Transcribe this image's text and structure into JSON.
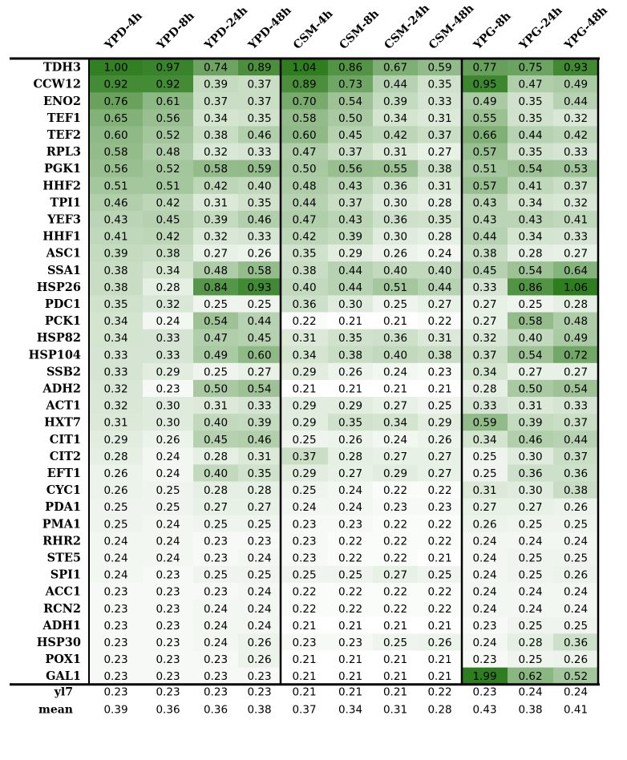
{
  "chart_data": {
    "type": "heatmap",
    "columns": [
      "YPD-4h",
      "YPD-8h",
      "YPD-24h",
      "YPD-48h",
      "CSM-4h",
      "CSM-8h",
      "CSM-24h",
      "CSM-48h",
      "YPG-8h",
      "YPG-24h",
      "YPG-48h"
    ],
    "column_groups": [
      {
        "columns": [
          "YPD-4h",
          "YPD-8h",
          "YPD-24h",
          "YPD-48h"
        ]
      },
      {
        "columns": [
          "CSM-4h",
          "CSM-8h",
          "CSM-24h",
          "CSM-48h"
        ]
      },
      {
        "columns": [
          "YPG-8h",
          "YPG-24h",
          "YPG-48h"
        ]
      }
    ],
    "rows": [
      {
        "name": "TDH3",
        "values": [
          "1.00",
          "0.97",
          "0.74",
          "0.89",
          "1.04",
          "0.86",
          "0.67",
          "0.59",
          "0.77",
          "0.75",
          "0.93"
        ]
      },
      {
        "name": "CCW12",
        "values": [
          "0.92",
          "0.92",
          "0.39",
          "0.37",
          "0.89",
          "0.73",
          "0.44",
          "0.35",
          "0.95",
          "0.47",
          "0.49"
        ]
      },
      {
        "name": "ENO2",
        "values": [
          "0.76",
          "0.61",
          "0.37",
          "0.37",
          "0.70",
          "0.54",
          "0.39",
          "0.33",
          "0.49",
          "0.35",
          "0.44"
        ]
      },
      {
        "name": "TEF1",
        "values": [
          "0.65",
          "0.56",
          "0.34",
          "0.35",
          "0.58",
          "0.50",
          "0.34",
          "0.31",
          "0.55",
          "0.35",
          "0.32"
        ]
      },
      {
        "name": "TEF2",
        "values": [
          "0.60",
          "0.52",
          "0.38",
          "0.46",
          "0.60",
          "0.45",
          "0.42",
          "0.37",
          "0.66",
          "0.44",
          "0.42"
        ]
      },
      {
        "name": "RPL3",
        "values": [
          "0.58",
          "0.48",
          "0.32",
          "0.33",
          "0.47",
          "0.37",
          "0.31",
          "0.27",
          "0.57",
          "0.35",
          "0.33"
        ]
      },
      {
        "name": "PGK1",
        "values": [
          "0.56",
          "0.52",
          "0.58",
          "0.59",
          "0.50",
          "0.56",
          "0.55",
          "0.38",
          "0.51",
          "0.54",
          "0.53"
        ]
      },
      {
        "name": "HHF2",
        "values": [
          "0.51",
          "0.51",
          "0.42",
          "0.40",
          "0.48",
          "0.43",
          "0.36",
          "0.31",
          "0.57",
          "0.41",
          "0.37"
        ]
      },
      {
        "name": "TPI1",
        "values": [
          "0.46",
          "0.42",
          "0.31",
          "0.35",
          "0.44",
          "0.37",
          "0.30",
          "0.28",
          "0.43",
          "0.34",
          "0.32"
        ]
      },
      {
        "name": "YEF3",
        "values": [
          "0.43",
          "0.45",
          "0.39",
          "0.46",
          "0.47",
          "0.43",
          "0.36",
          "0.35",
          "0.43",
          "0.43",
          "0.41"
        ]
      },
      {
        "name": "HHF1",
        "values": [
          "0.41",
          "0.42",
          "0.32",
          "0.33",
          "0.42",
          "0.39",
          "0.30",
          "0.28",
          "0.44",
          "0.34",
          "0.33"
        ]
      },
      {
        "name": "ASC1",
        "values": [
          "0.39",
          "0.38",
          "0.27",
          "0.26",
          "0.35",
          "0.29",
          "0.26",
          "0.24",
          "0.38",
          "0.28",
          "0.27"
        ]
      },
      {
        "name": "SSA1",
        "values": [
          "0.38",
          "0.34",
          "0.48",
          "0.58",
          "0.38",
          "0.44",
          "0.40",
          "0.40",
          "0.45",
          "0.54",
          "0.64"
        ]
      },
      {
        "name": "HSP26",
        "values": [
          "0.38",
          "0.28",
          "0.84",
          "0.93",
          "0.40",
          "0.44",
          "0.51",
          "0.44",
          "0.33",
          "0.86",
          "1.06"
        ]
      },
      {
        "name": "PDC1",
        "values": [
          "0.35",
          "0.32",
          "0.25",
          "0.25",
          "0.36",
          "0.30",
          "0.25",
          "0.27",
          "0.27",
          "0.25",
          "0.28"
        ]
      },
      {
        "name": "PCK1",
        "values": [
          "0.34",
          "0.24",
          "0.54",
          "0.44",
          "0.22",
          "0.21",
          "0.21",
          "0.22",
          "0.27",
          "0.58",
          "0.48"
        ]
      },
      {
        "name": "HSP82",
        "values": [
          "0.34",
          "0.33",
          "0.47",
          "0.45",
          "0.31",
          "0.35",
          "0.36",
          "0.31",
          "0.32",
          "0.40",
          "0.49"
        ]
      },
      {
        "name": "HSP104",
        "values": [
          "0.33",
          "0.33",
          "0.49",
          "0.60",
          "0.34",
          "0.38",
          "0.40",
          "0.38",
          "0.37",
          "0.54",
          "0.72"
        ]
      },
      {
        "name": "SSB2",
        "values": [
          "0.33",
          "0.29",
          "0.25",
          "0.27",
          "0.29",
          "0.26",
          "0.24",
          "0.23",
          "0.34",
          "0.27",
          "0.27"
        ]
      },
      {
        "name": "ADH2",
        "values": [
          "0.32",
          "0.23",
          "0.50",
          "0.54",
          "0.21",
          "0.21",
          "0.21",
          "0.21",
          "0.28",
          "0.50",
          "0.54"
        ]
      },
      {
        "name": "ACT1",
        "values": [
          "0.32",
          "0.30",
          "0.31",
          "0.33",
          "0.29",
          "0.29",
          "0.27",
          "0.25",
          "0.33",
          "0.31",
          "0.33"
        ]
      },
      {
        "name": "HXT7",
        "values": [
          "0.31",
          "0.30",
          "0.40",
          "0.39",
          "0.29",
          "0.35",
          "0.34",
          "0.29",
          "0.59",
          "0.39",
          "0.37"
        ]
      },
      {
        "name": "CIT1",
        "values": [
          "0.29",
          "0.26",
          "0.45",
          "0.46",
          "0.25",
          "0.26",
          "0.24",
          "0.26",
          "0.34",
          "0.46",
          "0.44"
        ]
      },
      {
        "name": "CIT2",
        "values": [
          "0.28",
          "0.24",
          "0.28",
          "0.31",
          "0.37",
          "0.28",
          "0.27",
          "0.27",
          "0.25",
          "0.30",
          "0.37"
        ]
      },
      {
        "name": "EFT1",
        "values": [
          "0.26",
          "0.24",
          "0.40",
          "0.35",
          "0.29",
          "0.27",
          "0.29",
          "0.27",
          "0.25",
          "0.36",
          "0.36"
        ]
      },
      {
        "name": "CYC1",
        "values": [
          "0.26",
          "0.25",
          "0.28",
          "0.28",
          "0.25",
          "0.24",
          "0.22",
          "0.22",
          "0.31",
          "0.30",
          "0.38"
        ]
      },
      {
        "name": "PDA1",
        "values": [
          "0.25",
          "0.25",
          "0.27",
          "0.27",
          "0.24",
          "0.24",
          "0.23",
          "0.23",
          "0.27",
          "0.27",
          "0.26"
        ]
      },
      {
        "name": "PMA1",
        "values": [
          "0.25",
          "0.24",
          "0.25",
          "0.25",
          "0.23",
          "0.23",
          "0.22",
          "0.22",
          "0.26",
          "0.25",
          "0.25"
        ]
      },
      {
        "name": "RHR2",
        "values": [
          "0.24",
          "0.24",
          "0.23",
          "0.23",
          "0.23",
          "0.22",
          "0.22",
          "0.22",
          "0.24",
          "0.24",
          "0.24"
        ]
      },
      {
        "name": "STE5",
        "values": [
          "0.24",
          "0.24",
          "0.23",
          "0.24",
          "0.23",
          "0.22",
          "0.22",
          "0.21",
          "0.24",
          "0.25",
          "0.25"
        ]
      },
      {
        "name": "SPI1",
        "values": [
          "0.24",
          "0.23",
          "0.25",
          "0.25",
          "0.25",
          "0.25",
          "0.27",
          "0.25",
          "0.24",
          "0.25",
          "0.26"
        ]
      },
      {
        "name": "ACC1",
        "values": [
          "0.23",
          "0.23",
          "0.23",
          "0.24",
          "0.22",
          "0.22",
          "0.22",
          "0.22",
          "0.24",
          "0.24",
          "0.24"
        ]
      },
      {
        "name": "RCN2",
        "values": [
          "0.23",
          "0.23",
          "0.24",
          "0.24",
          "0.22",
          "0.22",
          "0.22",
          "0.22",
          "0.24",
          "0.24",
          "0.24"
        ]
      },
      {
        "name": "ADH1",
        "values": [
          "0.23",
          "0.23",
          "0.24",
          "0.24",
          "0.21",
          "0.21",
          "0.21",
          "0.21",
          "0.23",
          "0.25",
          "0.25"
        ]
      },
      {
        "name": "HSP30",
        "values": [
          "0.23",
          "0.23",
          "0.24",
          "0.26",
          "0.23",
          "0.23",
          "0.25",
          "0.26",
          "0.24",
          "0.28",
          "0.36"
        ]
      },
      {
        "name": "POX1",
        "values": [
          "0.23",
          "0.23",
          "0.23",
          "0.26",
          "0.21",
          "0.21",
          "0.21",
          "0.21",
          "0.23",
          "0.25",
          "0.26"
        ]
      },
      {
        "name": "GAL1",
        "values": [
          "0.23",
          "0.23",
          "0.23",
          "0.23",
          "0.21",
          "0.21",
          "0.21",
          "0.21",
          "1.99",
          "0.62",
          "0.52"
        ]
      }
    ],
    "footer_rows": [
      {
        "name": "yl7",
        "values": [
          "0.23",
          "0.23",
          "0.23",
          "0.23",
          "0.21",
          "0.21",
          "0.21",
          "0.22",
          "0.23",
          "0.24",
          "0.24"
        ]
      },
      {
        "name": "mean",
        "values": [
          "0.39",
          "0.36",
          "0.36",
          "0.38",
          "0.37",
          "0.34",
          "0.31",
          "0.28",
          "0.43",
          "0.38",
          "0.41"
        ]
      }
    ],
    "color_scale": {
      "low": "#ffffff",
      "high": "#2e7d1e"
    }
  }
}
